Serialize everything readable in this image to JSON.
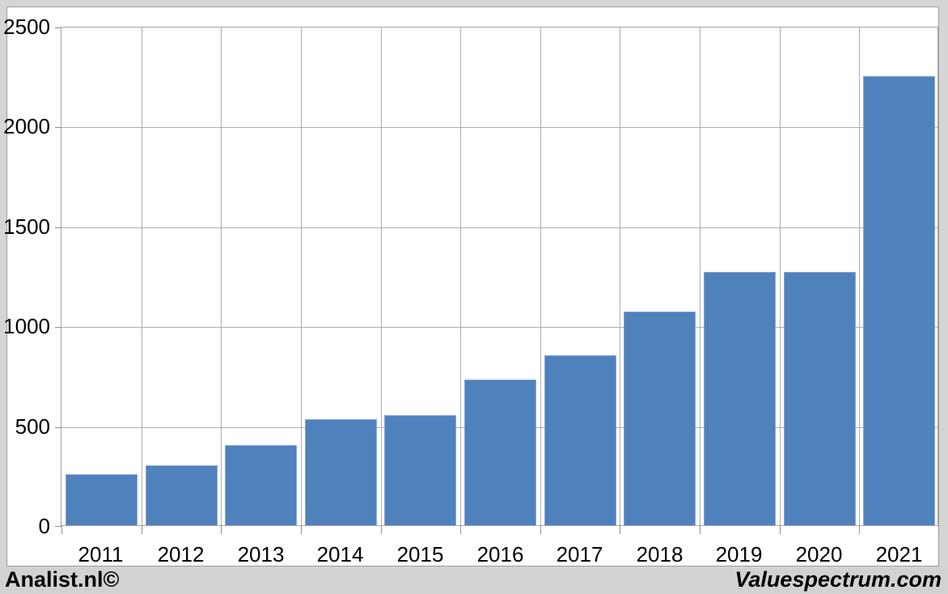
{
  "chart_data": {
    "type": "bar",
    "title": "",
    "xlabel": "",
    "ylabel": "",
    "categories": [
      "2011",
      "2012",
      "2013",
      "2014",
      "2015",
      "2016",
      "2017",
      "2018",
      "2019",
      "2020",
      "2021"
    ],
    "values": [
      255,
      300,
      400,
      530,
      550,
      730,
      850,
      1070,
      1270,
      1270,
      2250
    ],
    "ylim": [
      0,
      2500
    ],
    "yticks": [
      0,
      500,
      1000,
      1500,
      2000,
      2500
    ],
    "grid": true,
    "legend": "none",
    "bar_fill_color": "#4f81bd",
    "bar_border_color": "#8aa8d4",
    "gridline_color": "#adadad",
    "plot_background": "#ffffff"
  },
  "footer": {
    "left_text": "Analist.nl©",
    "right_text": "Valuespectrum.com",
    "background": "#d2d2d2"
  }
}
